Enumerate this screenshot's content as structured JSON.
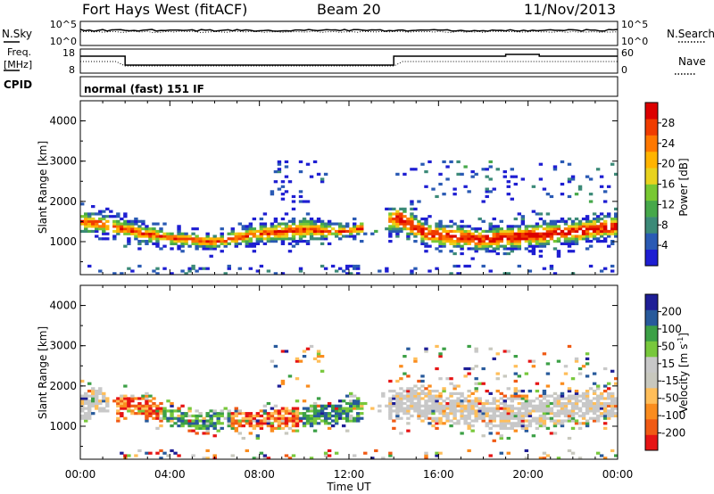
{
  "header": {
    "station": "Fort Hays West (fitACF)",
    "beam": "Beam 20",
    "date": "11/Nov/2013"
  },
  "summary": {
    "nsky_label": "N.Sky",
    "nsearch_label": "N.Search",
    "freq_label_line1": "Freq.",
    "freq_label_line2": "[MHz]",
    "nave_label": "Nave",
    "cpid_label": "CPID",
    "cpid_text": "normal (fast) 151 IF",
    "nsky_ticks": [
      "10^5",
      "10^0"
    ],
    "nsearch_ticks": [
      "10^5",
      "10^0"
    ],
    "freq_ticks": [
      "18",
      "8"
    ],
    "nave_ticks": [
      "60",
      "0"
    ]
  },
  "colors": {
    "power": [
      "#1e1ed2",
      "#2a5ab4",
      "#3c8a78",
      "#46a84a",
      "#78c832",
      "#e8d21e",
      "#ffb400",
      "#ff7800",
      "#f03c00",
      "#dc0000"
    ],
    "velocity": [
      "#e61414",
      "#f05a14",
      "#fa8c1e",
      "#ffbe5a",
      "#c8c8be",
      "#c8c8c8",
      "#78c83c",
      "#3ca046",
      "#285a9b",
      "#1e1e96"
    ]
  },
  "chart_data": [
    {
      "type": "heatmap",
      "name": "power",
      "title": "",
      "xlabel": "",
      "ylabel": "Slant Range [km]",
      "xlim": [
        "00:00",
        "24:00"
      ],
      "ylim": [
        180,
        4500
      ],
      "x_ticks": [
        "00:00",
        "04:00",
        "08:00",
        "12:00",
        "16:00",
        "20:00",
        "00:00"
      ],
      "y_ticks": [
        "1000",
        "2000",
        "3000",
        "4000"
      ],
      "colorbar": {
        "label": "Power [dB]",
        "ticks": [
          "4",
          "8",
          "12",
          "16",
          "20",
          "24",
          "28"
        ],
        "range": [
          0,
          30
        ]
      },
      "bands": [
        {
          "time_hours": 0.0,
          "center_km": 1500,
          "half_width_km": 300
        },
        {
          "time_hours": 1.0,
          "center_km": 1450,
          "half_width_km": 250
        },
        {
          "time_hours": 2.5,
          "center_km": 1250,
          "half_width_km": 250
        },
        {
          "time_hours": 4.0,
          "center_km": 1100,
          "half_width_km": 200
        },
        {
          "time_hours": 6.0,
          "center_km": 1000,
          "half_width_km": 200
        },
        {
          "time_hours": 8.0,
          "center_km": 1200,
          "half_width_km": 250
        },
        {
          "time_hours": 10.0,
          "center_km": 1300,
          "half_width_km": 300
        },
        {
          "time_hours": 12.0,
          "center_km": 1250,
          "half_width_km": 150
        },
        {
          "time_hours": 14.2,
          "center_km": 1600,
          "half_width_km": 350
        },
        {
          "time_hours": 15.5,
          "center_km": 1200,
          "half_width_km": 300
        },
        {
          "time_hours": 18.0,
          "center_km": 1050,
          "half_width_km": 300
        },
        {
          "time_hours": 20.0,
          "center_km": 1150,
          "half_width_km": 300
        },
        {
          "time_hours": 22.0,
          "center_km": 1250,
          "half_width_km": 300
        },
        {
          "time_hours": 24.0,
          "center_km": 1400,
          "half_width_km": 300
        }
      ]
    },
    {
      "type": "heatmap",
      "name": "velocity",
      "title": "",
      "xlabel": "Time UT",
      "ylabel": "Slant Range [km]",
      "xlim": [
        "00:00",
        "24:00"
      ],
      "ylim": [
        180,
        4500
      ],
      "x_ticks": [
        "00:00",
        "04:00",
        "08:00",
        "12:00",
        "16:00",
        "20:00",
        "00:00"
      ],
      "y_ticks": [
        "1000",
        "2000",
        "3000",
        "4000"
      ],
      "colorbar": {
        "label": "Velocity [m s^-1]",
        "ticks": [
          "200",
          "100",
          "50",
          "15",
          "-15",
          "-50",
          "-100",
          "-200"
        ]
      },
      "bands": [
        {
          "time_hours": 0.5,
          "center_km": 1700,
          "half_width_km": 300,
          "dominant": "ground-scatter"
        },
        {
          "time_hours": 2.5,
          "center_km": 1500,
          "half_width_km": 250,
          "dominant": "negative"
        },
        {
          "time_hours": 5.0,
          "center_km": 1100,
          "half_width_km": 200,
          "dominant": "positive"
        },
        {
          "time_hours": 8.5,
          "center_km": 1150,
          "half_width_km": 250,
          "dominant": "negative"
        },
        {
          "time_hours": 11.0,
          "center_km": 1300,
          "half_width_km": 250,
          "dominant": "positive"
        },
        {
          "time_hours": 14.5,
          "center_km": 1600,
          "half_width_km": 400,
          "dominant": "ground-scatter"
        },
        {
          "time_hours": 19.0,
          "center_km": 1300,
          "half_width_km": 400,
          "dominant": "ground-scatter"
        },
        {
          "time_hours": 23.5,
          "center_km": 1500,
          "half_width_km": 350,
          "dominant": "ground-scatter"
        }
      ]
    }
  ]
}
